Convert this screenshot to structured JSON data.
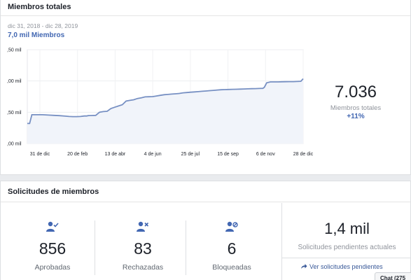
{
  "total_members": {
    "title": "Miembros totales",
    "date_range": "dic 31, 2018 - dic 28, 2019",
    "metric_label": "7,0 mil  Miembros",
    "big_value": "7.036",
    "big_caption": "Miembros totales",
    "growth": "+11%"
  },
  "chart_data": {
    "type": "line",
    "y_tick_labels": [
      ",50 mil",
      ",00 mil",
      ",50 mil",
      ",00 mil"
    ],
    "x_tick_labels": [
      "31 de dic",
      "20 de feb",
      "13 de abr",
      "4 de jun",
      "25 de jul",
      "15 de sep",
      "6 de nov",
      "28 de dic"
    ],
    "ylim": [
      6000,
      7500
    ],
    "series": [
      {
        "x": [
          0,
          1,
          2,
          3,
          6,
          12,
          20,
          28,
          35,
          42,
          50,
          55,
          60,
          65,
          70,
          75,
          78,
          80,
          85,
          90,
          95,
          100,
          105,
          110,
          115,
          120,
          125,
          130,
          135,
          140,
          145,
          150,
          155,
          160,
          165,
          170,
          175,
          180,
          185,
          190,
          195,
          200,
          205,
          210,
          215,
          220,
          225,
          230,
          235,
          240,
          245,
          250,
          255,
          260,
          265,
          270,
          275,
          280,
          285,
          290,
          295,
          300,
          305,
          310,
          312,
          315,
          320,
          325,
          330,
          335,
          340,
          345,
          350,
          355,
          360,
          363
        ],
        "y": [
          6320,
          6320,
          6320,
          6320,
          6460,
          6460,
          6460,
          6455,
          6450,
          6445,
          6438,
          6432,
          6430,
          6430,
          6432,
          6440,
          6440,
          6445,
          6448,
          6450,
          6500,
          6510,
          6515,
          6560,
          6580,
          6600,
          6620,
          6680,
          6690,
          6700,
          6720,
          6730,
          6745,
          6748,
          6750,
          6760,
          6770,
          6780,
          6785,
          6790,
          6795,
          6800,
          6810,
          6815,
          6820,
          6825,
          6830,
          6835,
          6840,
          6845,
          6850,
          6855,
          6860,
          6862,
          6864,
          6866,
          6868,
          6870,
          6872,
          6874,
          6876,
          6878,
          6880,
          6882,
          6900,
          6970,
          6985,
          6985,
          6985,
          6987,
          6988,
          6990,
          6990,
          6992,
          6995,
          7036
        ]
      }
    ],
    "grid": true,
    "fill": true,
    "line_color": "#7790c3",
    "fill_color": "#f1f4fa"
  },
  "requests": {
    "title": "Solicitudes de miembros",
    "stats": [
      {
        "value": "856",
        "label": "Aprobadas",
        "icon": "user-check-icon"
      },
      {
        "value": "83",
        "label": "Rechazadas",
        "icon": "user-x-icon"
      },
      {
        "value": "6",
        "label": "Bloqueadas",
        "icon": "user-block-icon"
      }
    ],
    "pending_value": "1,4 mil",
    "pending_caption": "Solicitudes pendientes actuales",
    "pending_link": "Ver solicitudes pendientes"
  },
  "chat": {
    "label": "Chat (275"
  },
  "colors": {
    "accent": "#4267b2",
    "link": "#385898"
  }
}
